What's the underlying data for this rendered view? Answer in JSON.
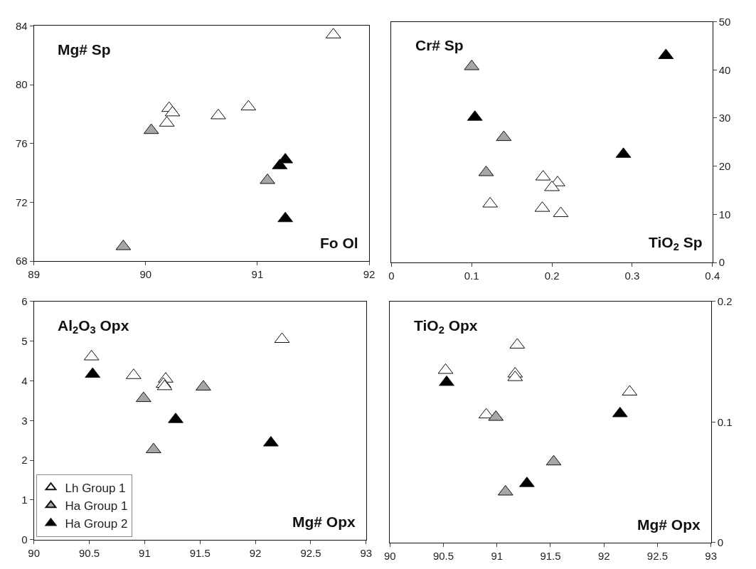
{
  "chart_data": [
    {
      "type": "scatter",
      "ylabel": "Mg# Sp",
      "xlabel": "Fo Ol",
      "xlim": [
        89,
        92
      ],
      "xticks": [
        89,
        90,
        91,
        92
      ],
      "ylim": [
        68,
        84
      ],
      "yticks": [
        68,
        72,
        76,
        80,
        84
      ],
      "marker": "triangle",
      "legend": false,
      "series": [
        {
          "color": "#ffffff",
          "x": [
            91.68,
            90.21,
            90.24,
            90.19,
            90.65,
            90.92
          ],
          "values": [
            83.4,
            78.4,
            78.1,
            77.4,
            77.9,
            78.5
          ]
        },
        {
          "color": "#a6a6a6",
          "x": [
            90.05,
            91.09,
            89.8
          ],
          "values": [
            76.9,
            73.5,
            69.0
          ]
        },
        {
          "color": "#000000",
          "x": [
            91.2,
            91.25,
            91.25
          ],
          "values": [
            74.5,
            74.9,
            70.9
          ]
        }
      ]
    },
    {
      "type": "scatter",
      "ylabel": "Cr# Sp",
      "xlabel": "TiO$_{2}$ Sp",
      "xlim": [
        0,
        0.4
      ],
      "xticks": [
        0,
        0.1,
        0.2,
        0.3,
        0.4
      ],
      "y2lim": [
        0,
        50
      ],
      "y2ticks": [
        0,
        10,
        20,
        30,
        40,
        50
      ],
      "marker": "triangle",
      "legend": false,
      "series": [
        {
          "color": "#ffffff",
          "axis": "y2",
          "x": [
            0.123,
            0.189,
            0.207,
            0.2,
            0.188,
            0.211
          ],
          "values": [
            12.2,
            17.8,
            16.6,
            15.6,
            11.3,
            10.2
          ]
        },
        {
          "color": "#a6a6a6",
          "axis": "y2",
          "x": [
            0.1,
            0.14,
            0.118
          ],
          "values": [
            40.7,
            26.0,
            18.7
          ]
        },
        {
          "color": "#000000",
          "axis": "y2",
          "x": [
            0.104,
            0.342,
            0.289
          ],
          "values": [
            30.2,
            43.0,
            22.5
          ]
        }
      ]
    },
    {
      "type": "scatter",
      "ylabel": "Al$_{2}$O$_{3}$ Opx",
      "xlabel": "Mg# Opx",
      "xlim": [
        90,
        93
      ],
      "xticks": [
        90,
        90.5,
        91,
        91.5,
        92,
        92.5,
        93
      ],
      "ylim": [
        0,
        6
      ],
      "yticks": [
        0,
        1,
        2,
        3,
        4,
        5,
        6
      ],
      "marker": "triangle",
      "legend": "bottom left",
      "series": [
        {
          "name": "Lh Group 1",
          "color": "#ffffff",
          "x": [
            90.52,
            90.9,
            91.19,
            91.17,
            91.18,
            92.24
          ],
          "values": [
            4.61,
            4.14,
            4.05,
            3.92,
            3.86,
            5.05
          ]
        },
        {
          "name": "Ha Group 1",
          "color": "#a6a6a6",
          "x": [
            90.99,
            91.53,
            91.08
          ],
          "values": [
            3.56,
            3.85,
            2.27
          ]
        },
        {
          "name": "Ha Group 2",
          "color": "#000000",
          "x": [
            90.53,
            91.28,
            92.14
          ],
          "values": [
            4.17,
            3.03,
            2.44
          ]
        }
      ]
    },
    {
      "type": "scatter",
      "ylabel": "TiO$_{2}$ Opx",
      "xlabel": "Mg# Opx",
      "xlim": [
        90,
        93
      ],
      "xticks": [
        90,
        90.5,
        91,
        91.5,
        92,
        92.5,
        93
      ],
      "y2lim": [
        0,
        0.2
      ],
      "y2ticks": [
        0,
        0.1,
        0.2
      ],
      "marker": "triangle",
      "legend": false,
      "series": [
        {
          "color": "#ffffff",
          "axis": "y2",
          "x": [
            90.52,
            91.19,
            91.17,
            91.17,
            90.9,
            92.24
          ],
          "values": [
            0.143,
            0.164,
            0.14,
            0.137,
            0.106,
            0.125
          ]
        },
        {
          "color": "#a6a6a6",
          "axis": "y2",
          "x": [
            90.99,
            91.08,
            91.53
          ],
          "values": [
            0.104,
            0.042,
            0.067
          ]
        },
        {
          "color": "#000000",
          "axis": "y2",
          "x": [
            90.53,
            91.28,
            92.15
          ],
          "values": [
            0.133,
            0.049,
            0.107
          ]
        }
      ]
    }
  ]
}
